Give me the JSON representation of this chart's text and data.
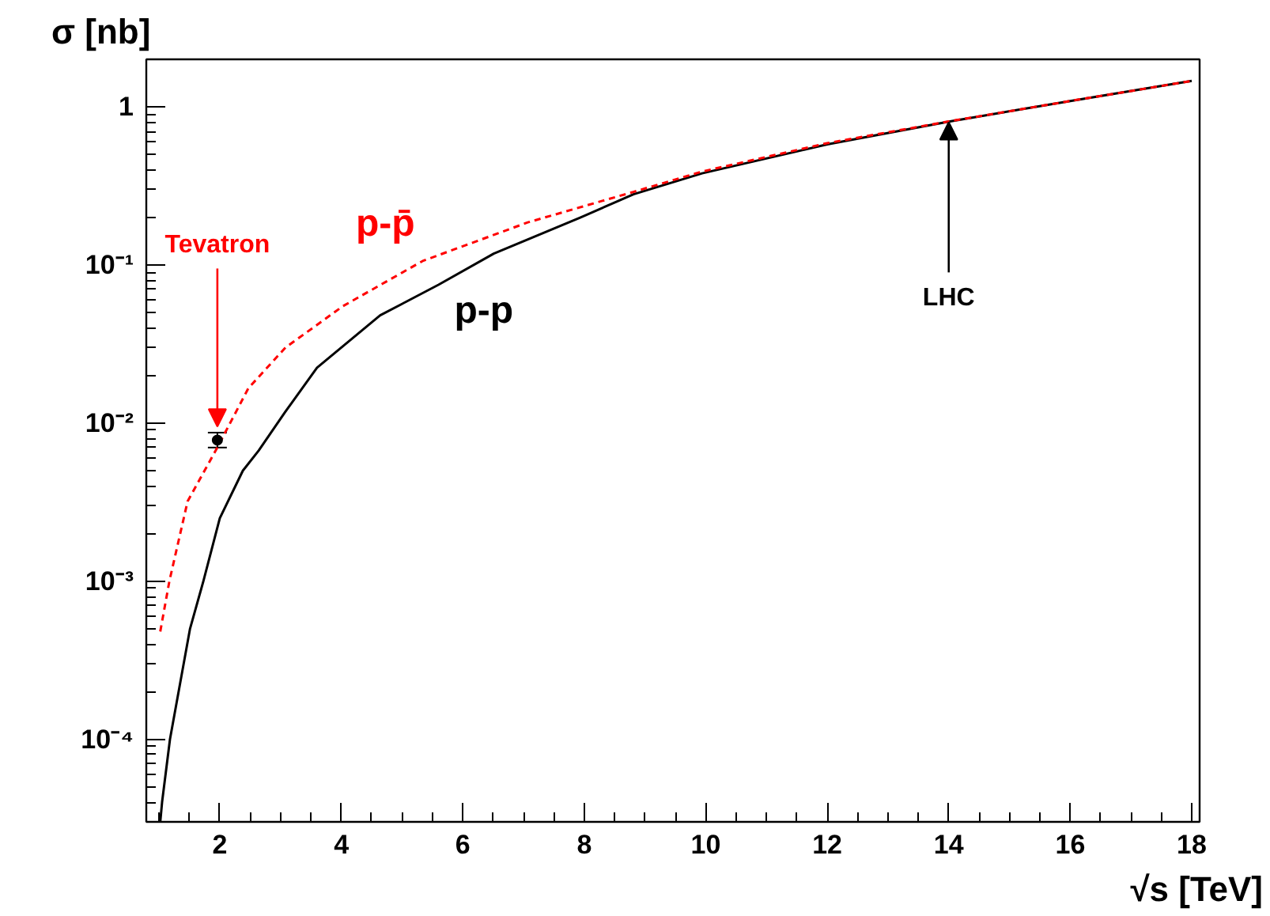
{
  "chart_data": {
    "type": "line",
    "xlabel": "√s [TeV]",
    "ylabel": "σ [nb]",
    "log": "y",
    "grid": false,
    "xlim": [
      0.79,
      18.13
    ],
    "ylim": [
      3e-05,
      2
    ],
    "xticks": [
      2,
      4,
      6,
      8,
      10,
      12,
      14,
      16,
      18
    ],
    "yticks": [
      {
        "value": 0.0001,
        "label": "10⁻⁴"
      },
      {
        "value": 0.001,
        "label": "10⁻³"
      },
      {
        "value": 0.01,
        "label": "10⁻²"
      },
      {
        "value": 0.1,
        "label": "10⁻¹"
      },
      1
    ],
    "series": [
      {
        "name": "p-p",
        "color": "#000000",
        "line_style": "solid",
        "x": [
          1.02,
          1.05,
          1.18,
          1.51,
          1.73,
          2.0,
          2.38,
          2.64,
          3.08,
          3.6,
          4.64,
          5.6,
          6.51,
          7.94,
          8.81,
          9.94,
          12,
          14.02,
          16,
          18
        ],
        "values": [
          3e-05,
          4e-05,
          0.0001,
          0.0005,
          0.001,
          0.0025,
          0.005,
          0.0067,
          0.0118,
          0.0224,
          0.048,
          0.075,
          0.118,
          0.2,
          0.28,
          0.38,
          0.58,
          0.81,
          1.09,
          1.46
        ]
      },
      {
        "name": "p-p̄",
        "color": "#ff0000",
        "line_style": "dashed",
        "x": [
          1.02,
          1.17,
          1.47,
          1.95,
          2.47,
          3.08,
          4.03,
          5.34,
          7.07,
          8.81,
          9.94,
          12,
          14,
          16,
          18
        ],
        "values": [
          0.00048,
          0.001,
          0.0032,
          0.0069,
          0.0166,
          0.03,
          0.055,
          0.106,
          0.186,
          0.29,
          0.39,
          0.59,
          0.81,
          1.09,
          1.46
        ]
      },
      {
        "type": "scatter",
        "marker": "circle",
        "color": "#000000",
        "x": [
          1.96
        ],
        "values": [
          0.0078
        ],
        "errors": [
          [
            0.007,
            0.0087
          ]
        ]
      }
    ],
    "annotations": [
      {
        "text": "Tevatron",
        "x": 1.96,
        "y": 0.0095
      },
      {
        "text": "LHC",
        "x": 14,
        "y": 0.8
      }
    ]
  }
}
